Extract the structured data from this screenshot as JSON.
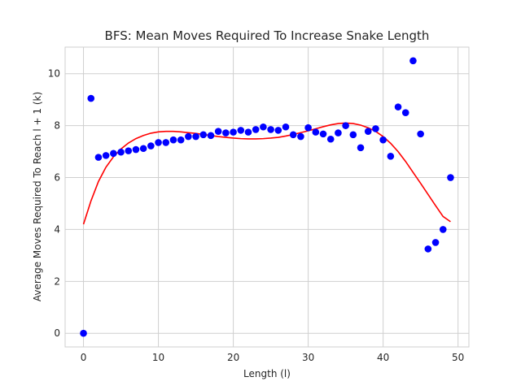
{
  "chart_data": {
    "type": "scatter",
    "title": "BFS: Mean Moves Required To Increase Snake Length",
    "xlabel": "Length (l)",
    "ylabel": "Average Moves Required To Reach l + 1 (k)",
    "xlim": [
      -2.45,
      51.45
    ],
    "ylim": [
      -0.525,
      11.025
    ],
    "xticks": [
      0,
      10,
      20,
      30,
      40,
      50
    ],
    "yticks": [
      0,
      2,
      4,
      6,
      8,
      10
    ],
    "grid": true,
    "style": "whitegrid",
    "series": [
      {
        "kind": "scatter",
        "color": "#0000ff",
        "x": [
          0,
          1,
          2,
          3,
          4,
          5,
          6,
          7,
          8,
          9,
          10,
          11,
          12,
          13,
          14,
          15,
          16,
          17,
          18,
          19,
          20,
          21,
          22,
          23,
          24,
          25,
          26,
          27,
          28,
          29,
          30,
          31,
          32,
          33,
          34,
          35,
          36,
          37,
          38,
          39,
          40,
          41,
          42,
          43,
          44,
          45,
          46,
          47,
          48,
          49
        ],
        "y": [
          0.0,
          9.05,
          6.78,
          6.85,
          6.93,
          6.98,
          7.03,
          7.08,
          7.12,
          7.22,
          7.35,
          7.35,
          7.45,
          7.45,
          7.58,
          7.58,
          7.65,
          7.62,
          7.78,
          7.72,
          7.75,
          7.82,
          7.75,
          7.85,
          7.95,
          7.85,
          7.82,
          7.95,
          7.65,
          7.58,
          7.92,
          7.75,
          7.68,
          7.48,
          7.72,
          8.0,
          7.65,
          7.15,
          7.78,
          7.88,
          7.45,
          6.82,
          8.72,
          8.5,
          10.5,
          7.68,
          3.25,
          3.5,
          4.0,
          6.0
        ]
      },
      {
        "kind": "line",
        "color": "#ff0000",
        "x": [
          0,
          1,
          2,
          3,
          4,
          5,
          6,
          7,
          8,
          9,
          10,
          11,
          12,
          13,
          14,
          15,
          16,
          17,
          18,
          19,
          20,
          21,
          22,
          23,
          24,
          25,
          26,
          27,
          28,
          29,
          30,
          31,
          32,
          33,
          34,
          35,
          36,
          37,
          38,
          39,
          40,
          41,
          42,
          43,
          44,
          45,
          46,
          47,
          48,
          49
        ],
        "y": [
          4.2,
          5.1,
          5.85,
          6.4,
          6.8,
          7.1,
          7.33,
          7.5,
          7.62,
          7.71,
          7.76,
          7.78,
          7.78,
          7.76,
          7.73,
          7.7,
          7.66,
          7.62,
          7.58,
          7.55,
          7.52,
          7.5,
          7.49,
          7.49,
          7.5,
          7.52,
          7.55,
          7.6,
          7.66,
          7.73,
          7.8,
          7.88,
          7.96,
          8.03,
          8.08,
          8.1,
          8.08,
          8.02,
          7.92,
          7.78,
          7.58,
          7.32,
          7.0,
          6.62,
          6.2,
          5.78,
          5.35,
          4.92,
          4.5,
          4.3
        ]
      }
    ]
  }
}
